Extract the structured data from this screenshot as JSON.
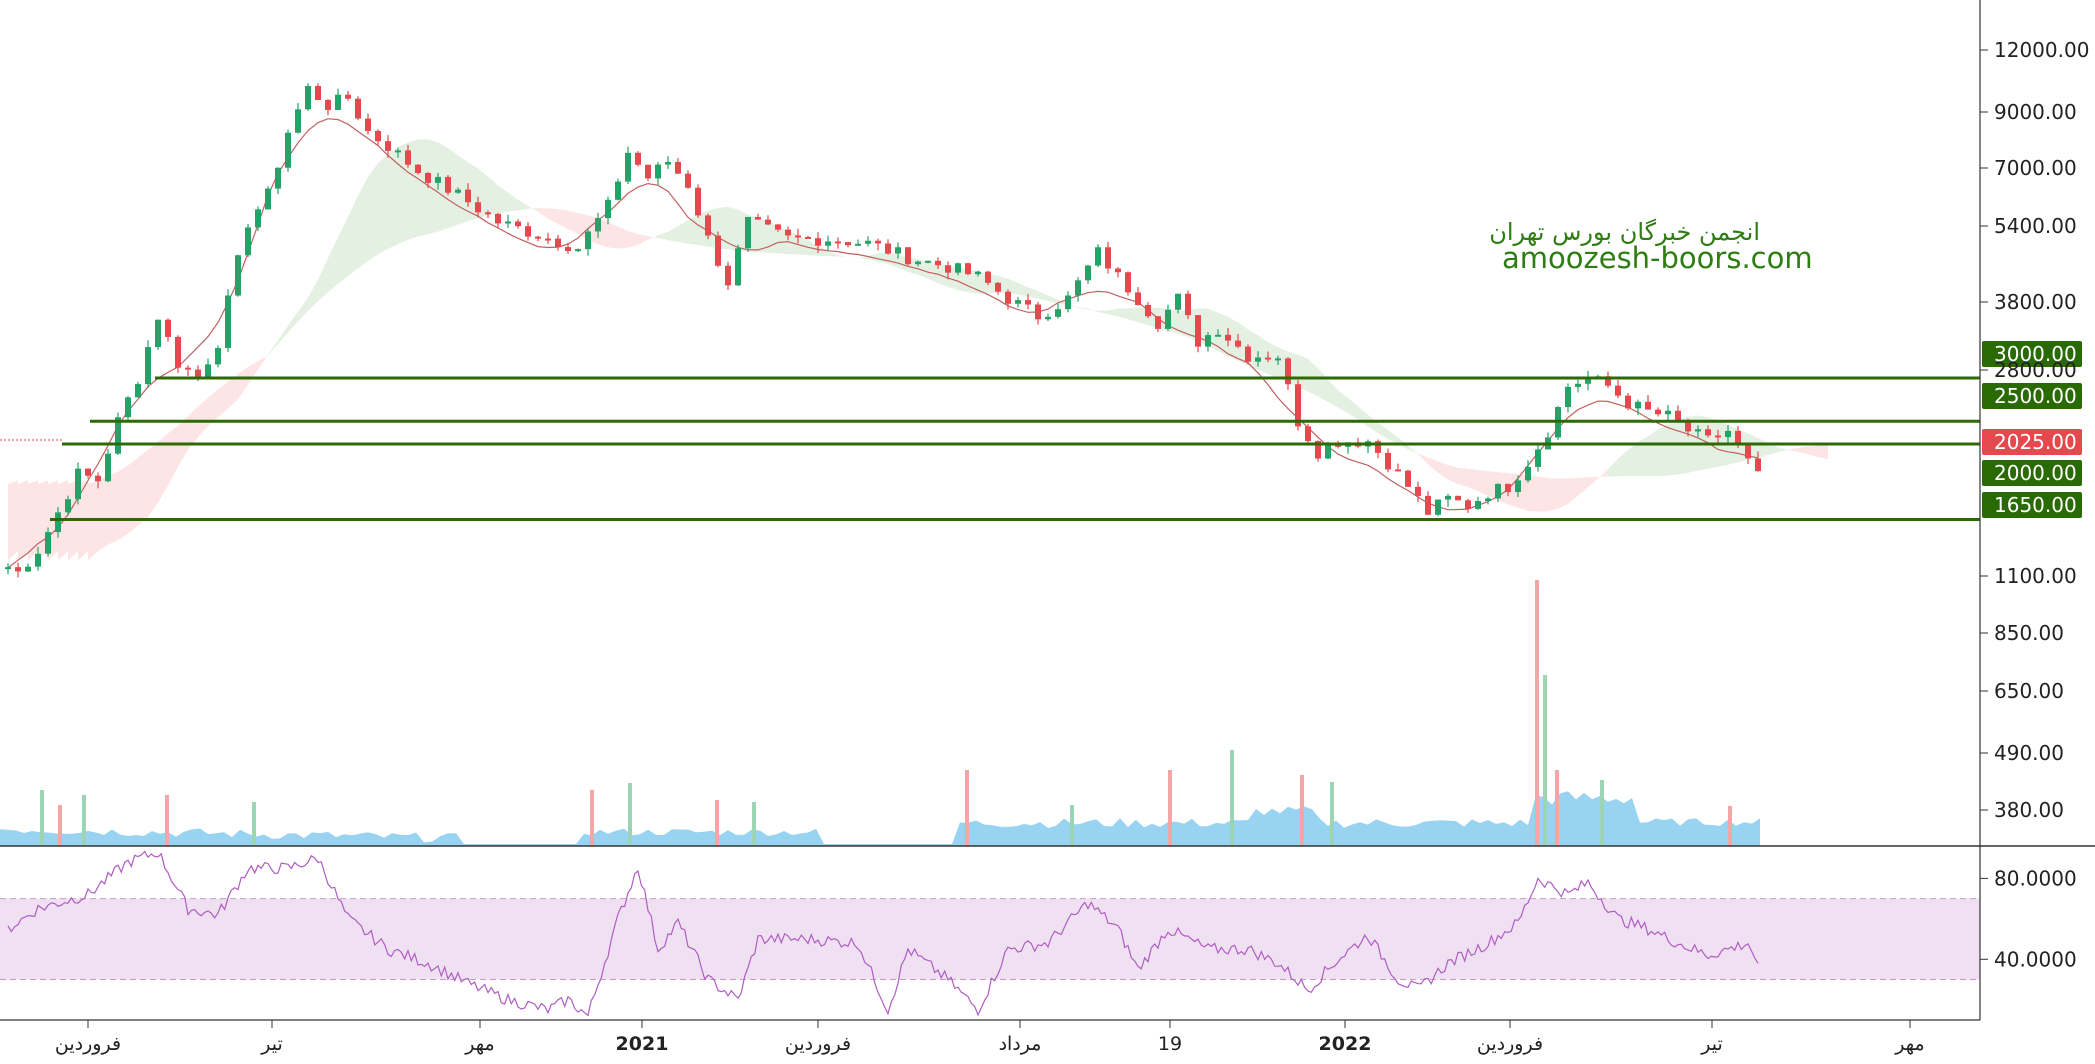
{
  "colors": {
    "up": "#26a269",
    "down": "#e5484d",
    "level_line": "#2d6a04",
    "level_label_bg": "#2a6a05",
    "current_label_bg": "#e5484d",
    "cloud_bull": "#dfeedd",
    "cloud_bear": "#fde0e0",
    "base_line": "#c26060",
    "volume": "#80c8ef",
    "volume_up": "#9bd5b4",
    "volume_down": "#f4a6a6",
    "rsi_line": "#b05cc4",
    "rsi_band": "#f0e1f2",
    "watermark": "#2e7d12",
    "axis_text": "#222222"
  },
  "watermark": {
    "line1": "انجمن خبرگان بورس تهران",
    "line2": "amoozesh-boors.com"
  },
  "chart_data": [
    {
      "type": "candlestick",
      "price_scale": "log",
      "y_ticks": [
        "12000.00",
        "9000.00",
        "7000.00",
        "5400.00",
        "3800.00",
        "2800.00",
        "1100.00",
        "850.00",
        "650.00",
        "490.00",
        "380.00"
      ],
      "x_ticks": [
        "فروردین",
        "تیر",
        "مهر",
        "2021",
        "فروردین",
        "مرداد",
        "19",
        "2022",
        "فروردین",
        "تیر",
        "مهر"
      ],
      "horizontal_levels": [
        {
          "value": 3000,
          "label": "3000.00"
        },
        {
          "value": 2500,
          "label": "2500.00"
        },
        {
          "value": 2000,
          "label": "2000.00"
        },
        {
          "value": 1650,
          "label": "1650.00"
        }
      ],
      "current_price": {
        "value": 2025,
        "label": "2025.00"
      },
      "close_path": [
        {
          "x": 0,
          "y": 1350
        },
        {
          "x": 1,
          "y": 1320
        },
        {
          "x": 3,
          "y": 1450
        },
        {
          "x": 5,
          "y": 1700
        },
        {
          "x": 7,
          "y": 2000
        },
        {
          "x": 9,
          "y": 1950
        },
        {
          "x": 11,
          "y": 2500
        },
        {
          "x": 13,
          "y": 3000
        },
        {
          "x": 15,
          "y": 3900
        },
        {
          "x": 17,
          "y": 3200
        },
        {
          "x": 19,
          "y": 3000
        },
        {
          "x": 21,
          "y": 3500
        },
        {
          "x": 24,
          "y": 5800
        },
        {
          "x": 26,
          "y": 6500
        },
        {
          "x": 28,
          "y": 8500
        },
        {
          "x": 30,
          "y": 10200
        },
        {
          "x": 32,
          "y": 9500
        },
        {
          "x": 34,
          "y": 9800
        },
        {
          "x": 36,
          "y": 8500
        },
        {
          "x": 38,
          "y": 8000
        },
        {
          "x": 41,
          "y": 7200
        },
        {
          "x": 45,
          "y": 6500
        },
        {
          "x": 49,
          "y": 5800
        },
        {
          "x": 53,
          "y": 5500
        },
        {
          "x": 57,
          "y": 5200
        },
        {
          "x": 60,
          "y": 6200
        },
        {
          "x": 62,
          "y": 7800
        },
        {
          "x": 64,
          "y": 7000
        },
        {
          "x": 66,
          "y": 7500
        },
        {
          "x": 68,
          "y": 6800
        },
        {
          "x": 70,
          "y": 5400
        },
        {
          "x": 72,
          "y": 4500
        },
        {
          "x": 74,
          "y": 5800
        },
        {
          "x": 78,
          "y": 5400
        },
        {
          "x": 82,
          "y": 5400
        },
        {
          "x": 86,
          "y": 5300
        },
        {
          "x": 90,
          "y": 5000
        },
        {
          "x": 94,
          "y": 4800
        },
        {
          "x": 97,
          "y": 4600
        },
        {
          "x": 100,
          "y": 4200
        },
        {
          "x": 103,
          "y": 3900
        },
        {
          "x": 106,
          "y": 4200
        },
        {
          "x": 109,
          "y": 5100
        },
        {
          "x": 111,
          "y": 4600
        },
        {
          "x": 113,
          "y": 4200
        },
        {
          "x": 115,
          "y": 3800
        },
        {
          "x": 117,
          "y": 4200
        },
        {
          "x": 119,
          "y": 3500
        },
        {
          "x": 121,
          "y": 3700
        },
        {
          "x": 124,
          "y": 3300
        },
        {
          "x": 127,
          "y": 3300
        },
        {
          "x": 129,
          "y": 2500
        },
        {
          "x": 131,
          "y": 2200
        },
        {
          "x": 133,
          "y": 2300
        },
        {
          "x": 136,
          "y": 2300
        },
        {
          "x": 138,
          "y": 2100
        },
        {
          "x": 140,
          "y": 1900
        },
        {
          "x": 142,
          "y": 1700
        },
        {
          "x": 144,
          "y": 1800
        },
        {
          "x": 146,
          "y": 1750
        },
        {
          "x": 148,
          "y": 1850
        },
        {
          "x": 150,
          "y": 1900
        },
        {
          "x": 152,
          "y": 2100
        },
        {
          "x": 154,
          "y": 2400
        },
        {
          "x": 156,
          "y": 2900
        },
        {
          "x": 158,
          "y": 3000
        },
        {
          "x": 160,
          "y": 2900
        },
        {
          "x": 162,
          "y": 2700
        },
        {
          "x": 164,
          "y": 2600
        },
        {
          "x": 166,
          "y": 2550
        },
        {
          "x": 168,
          "y": 2400
        },
        {
          "x": 170,
          "y": 2300
        },
        {
          "x": 172,
          "y": 2400
        },
        {
          "x": 174,
          "y": 2100
        },
        {
          "x": 175,
          "y": 2025
        }
      ],
      "rsi": {
        "levels": [
          70,
          30
        ],
        "y_ticks": [
          "80.0000",
          "40.0000"
        ],
        "path": [
          {
            "x": 0,
            "y": 55
          },
          {
            "x": 3,
            "y": 65
          },
          {
            "x": 8,
            "y": 72
          },
          {
            "x": 12,
            "y": 88
          },
          {
            "x": 15,
            "y": 93
          },
          {
            "x": 18,
            "y": 65
          },
          {
            "x": 21,
            "y": 62
          },
          {
            "x": 24,
            "y": 85
          },
          {
            "x": 28,
            "y": 85
          },
          {
            "x": 31,
            "y": 90
          },
          {
            "x": 34,
            "y": 60
          },
          {
            "x": 38,
            "y": 45
          },
          {
            "x": 42,
            "y": 38
          },
          {
            "x": 46,
            "y": 28
          },
          {
            "x": 50,
            "y": 20
          },
          {
            "x": 54,
            "y": 15
          },
          {
            "x": 56,
            "y": 20
          },
          {
            "x": 58,
            "y": 12
          },
          {
            "x": 61,
            "y": 60
          },
          {
            "x": 63,
            "y": 86
          },
          {
            "x": 65,
            "y": 45
          },
          {
            "x": 67,
            "y": 58
          },
          {
            "x": 70,
            "y": 30
          },
          {
            "x": 73,
            "y": 20
          },
          {
            "x": 75,
            "y": 50
          },
          {
            "x": 80,
            "y": 50
          },
          {
            "x": 85,
            "y": 48
          },
          {
            "x": 88,
            "y": 15
          },
          {
            "x": 90,
            "y": 45
          },
          {
            "x": 94,
            "y": 30
          },
          {
            "x": 97,
            "y": 15
          },
          {
            "x": 100,
            "y": 45
          },
          {
            "x": 104,
            "y": 48
          },
          {
            "x": 108,
            "y": 68
          },
          {
            "x": 111,
            "y": 55
          },
          {
            "x": 113,
            "y": 35
          },
          {
            "x": 116,
            "y": 55
          },
          {
            "x": 120,
            "y": 45
          },
          {
            "x": 124,
            "y": 45
          },
          {
            "x": 127,
            "y": 38
          },
          {
            "x": 130,
            "y": 25
          },
          {
            "x": 133,
            "y": 40
          },
          {
            "x": 136,
            "y": 52
          },
          {
            "x": 139,
            "y": 30
          },
          {
            "x": 141,
            "y": 25
          },
          {
            "x": 144,
            "y": 38
          },
          {
            "x": 148,
            "y": 48
          },
          {
            "x": 151,
            "y": 58
          },
          {
            "x": 153,
            "y": 80
          },
          {
            "x": 156,
            "y": 72
          },
          {
            "x": 158,
            "y": 78
          },
          {
            "x": 161,
            "y": 60
          },
          {
            "x": 164,
            "y": 55
          },
          {
            "x": 167,
            "y": 48
          },
          {
            "x": 170,
            "y": 42
          },
          {
            "x": 172,
            "y": 45
          },
          {
            "x": 174,
            "y": 48
          },
          {
            "x": 175,
            "y": 38
          }
        ]
      }
    }
  ]
}
